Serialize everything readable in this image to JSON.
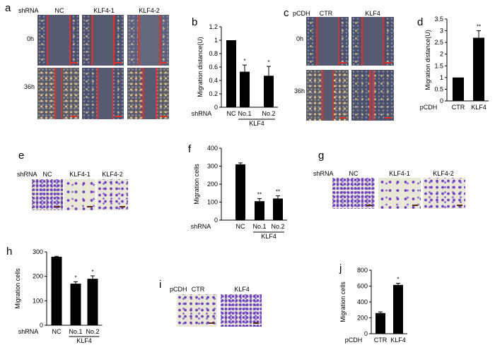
{
  "panels": {
    "a": {
      "label": "a",
      "prefix": "shRNA",
      "columns": [
        "NC",
        "KLF4-1",
        "KLF4-2"
      ],
      "rows": [
        "0h",
        "36h"
      ]
    },
    "c": {
      "label": "c",
      "prefix": "pCDH",
      "columns": [
        "CTR",
        "KLF4"
      ],
      "rows": [
        "0h",
        "36h"
      ]
    },
    "e": {
      "label": "e",
      "prefix": "shRNA",
      "columns": [
        "NC",
        "KLF4-1",
        "KLF4-2"
      ]
    },
    "g": {
      "label": "g",
      "prefix": "shRNA",
      "columns": [
        "NC",
        "KLF4-1",
        "KLF4-2"
      ]
    },
    "i": {
      "label": "i",
      "prefix": "pCDH",
      "columns": [
        "CTR",
        "KLF4"
      ]
    }
  },
  "colors": {
    "bar": "#000000",
    "wound_line": "#e2302a",
    "stain": "#6a3fc0"
  },
  "chart_data": [
    {
      "id": "b",
      "panel_label": "b",
      "type": "bar",
      "prefix": "shRNA",
      "categories": [
        "NC",
        "No.1",
        "No.2"
      ],
      "values": [
        1.0,
        0.53,
        0.47
      ],
      "errors": [
        0,
        0.1,
        0.14
      ],
      "significance": [
        "",
        "*",
        "*"
      ],
      "group": {
        "label": "KLF4",
        "from": 1,
        "to": 2
      },
      "ylabel": "Migration distance(U)",
      "ylim": [
        0,
        1.2
      ],
      "yticks": [
        "0",
        "0.2",
        "0.4",
        "0.6",
        "0.8",
        "1",
        "1.2"
      ]
    },
    {
      "id": "d",
      "panel_label": "d",
      "type": "bar",
      "prefix": "pCDH",
      "categories": [
        "CTR",
        "KLF4"
      ],
      "values": [
        1.0,
        2.7
      ],
      "errors": [
        0,
        0.3
      ],
      "significance": [
        "",
        "**"
      ],
      "ylabel": "Migration distance(U)",
      "ylim": [
        0,
        3.5
      ],
      "yticks": [
        "0",
        "0.5",
        "1",
        "1.5",
        "2",
        "2.5",
        "3",
        "3.5"
      ]
    },
    {
      "id": "f",
      "panel_label": "f",
      "type": "bar",
      "prefix": "shRNA",
      "categories": [
        "NC",
        "No.1",
        "No.2"
      ],
      "values": [
        310,
        105,
        120
      ],
      "errors": [
        8,
        15,
        15
      ],
      "significance": [
        "",
        "**",
        "**"
      ],
      "group": {
        "label": "KLF4",
        "from": 1,
        "to": 2
      },
      "ylabel": "Migration cells",
      "ylim": [
        0,
        400
      ],
      "yticks": [
        "0",
        "100",
        "200",
        "300",
        "400"
      ]
    },
    {
      "id": "h",
      "panel_label": "h",
      "type": "bar",
      "prefix": "shRNA",
      "categories": [
        "NC",
        "No.1",
        "No.2"
      ],
      "values": [
        280,
        170,
        190
      ],
      "errors": [
        2,
        8,
        12
      ],
      "significance": [
        "",
        "*",
        "*"
      ],
      "group": {
        "label": "KLF4",
        "from": 1,
        "to": 2
      },
      "ylabel": "Migration cells",
      "ylim": [
        0,
        300
      ],
      "yticks": [
        "0",
        "100",
        "200",
        "300"
      ]
    },
    {
      "id": "j",
      "panel_label": "j",
      "type": "bar",
      "prefix": "pCDH",
      "categories": [
        "CTR",
        "KLF4"
      ],
      "values": [
        260,
        615
      ],
      "errors": [
        15,
        20
      ],
      "significance": [
        "",
        "*"
      ],
      "ylabel": "Migration cells",
      "ylim": [
        0,
        800
      ],
      "yticks": [
        "0",
        "200",
        "400",
        "600",
        "800"
      ]
    }
  ]
}
